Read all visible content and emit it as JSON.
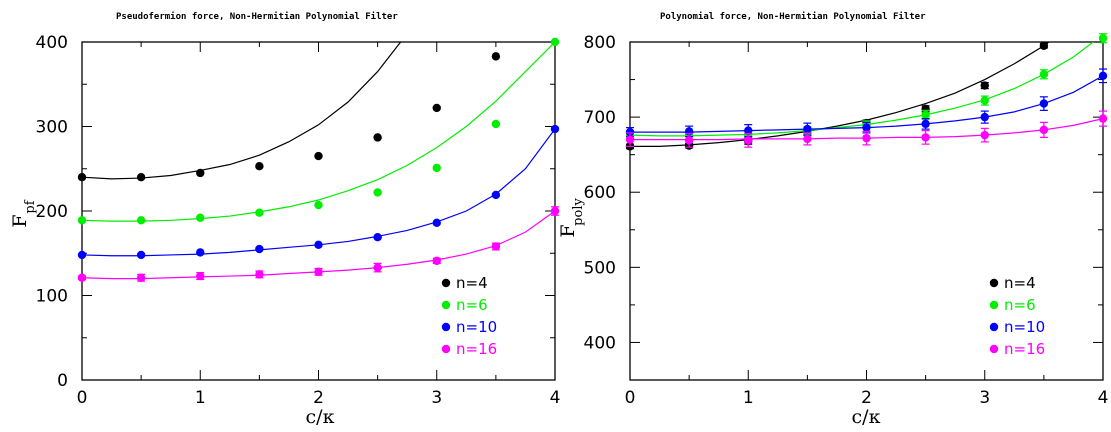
{
  "charts": [
    {
      "title": "Pseudofermion force, Non-Hermitian Polynomial Filter",
      "xlabel": "c/κ",
      "ylabel_main": "F",
      "ylabel_sub": "pf",
      "xticks": [
        "0",
        "1",
        "2",
        "3",
        "4"
      ],
      "yticks": [
        "0",
        "100",
        "200",
        "300",
        "400"
      ]
    },
    {
      "title": "Polynomial force, Non-Hermitian Polynomial Filter",
      "xlabel": "c/κ",
      "ylabel_main": "F",
      "ylabel_sub": "poly",
      "xticks": [
        "0",
        "1",
        "2",
        "3",
        "4"
      ],
      "yticks": [
        "400",
        "500",
        "600",
        "700",
        "800"
      ]
    }
  ],
  "chart_data": [
    {
      "type": "scatter",
      "title": "Pseudofermion force, Non-Hermitian Polynomial Filter",
      "xlabel": "c/κ",
      "ylabel": "F_pf",
      "xlim": [
        0,
        4
      ],
      "ylim": [
        0,
        400
      ],
      "xticks": [
        0,
        1,
        2,
        3,
        4
      ],
      "yticks": [
        0,
        100,
        200,
        300,
        400
      ],
      "grid": false,
      "legend_position": "bottom-right",
      "x": [
        0,
        0.5,
        1,
        1.5,
        2,
        2.5,
        3,
        3.5,
        4
      ],
      "series": [
        {
          "name": "n=4",
          "color": "#000000",
          "values": [
            240,
            240,
            245,
            253,
            265,
            287,
            322,
            383,
            null
          ],
          "errors": [
            0,
            0,
            0,
            0,
            0,
            0,
            0,
            0,
            0
          ],
          "fit": [
            240,
            238,
            239,
            242,
            248,
            255,
            266,
            282,
            302,
            329,
            365,
            410
          ]
        },
        {
          "name": "n=6",
          "color": "#00ee00",
          "values": [
            189,
            189,
            192,
            198,
            207,
            222,
            251,
            303,
            400
          ],
          "errors": [
            0,
            0,
            0,
            0,
            0,
            0,
            0,
            0,
            0
          ],
          "fit": [
            189,
            188,
            188,
            189,
            191,
            194,
            199,
            205,
            213,
            224,
            237,
            254,
            275,
            300,
            330,
            365,
            400
          ]
        },
        {
          "name": "n=10",
          "color": "#0000ff",
          "values": [
            148,
            148,
            151,
            155,
            160,
            169,
            186,
            219,
            297
          ],
          "errors": [
            0,
            0,
            0,
            0,
            0,
            0,
            0,
            0,
            0
          ],
          "fit": [
            148,
            147,
            147,
            148,
            149,
            151,
            154,
            157,
            160,
            164,
            170,
            177,
            187,
            200,
            220,
            250,
            297
          ]
        },
        {
          "name": "n=16",
          "color": "#ff00ff",
          "values": [
            121,
            121,
            123,
            125,
            128,
            133,
            141,
            158,
            200
          ],
          "errors": [
            2,
            4,
            4,
            4,
            4,
            5,
            3,
            4,
            5
          ],
          "fit": [
            121,
            120,
            120,
            121,
            122,
            123,
            124,
            126,
            128,
            130,
            133,
            137,
            142,
            149,
            159,
            175,
            200
          ]
        }
      ]
    },
    {
      "type": "scatter",
      "title": "Polynomial force, Non-Hermitian Polynomial Filter",
      "xlabel": "c/κ",
      "ylabel": "F_poly",
      "xlim": [
        0,
        4
      ],
      "ylim": [
        350,
        800
      ],
      "xticks": [
        0,
        1,
        2,
        3,
        4
      ],
      "yticks": [
        400,
        500,
        600,
        700,
        800
      ],
      "grid": false,
      "legend_position": "bottom-right",
      "x": [
        0,
        0.5,
        1,
        1.5,
        2,
        2.5,
        3,
        3.5,
        4
      ],
      "series": [
        {
          "name": "n=4",
          "color": "#000000",
          "values": [
            661,
            662,
            668,
            680,
            692,
            711,
            742,
            795,
            null
          ],
          "errors": [
            3,
            3,
            4,
            4,
            4,
            4,
            4,
            3,
            0
          ],
          "fit": [
            661,
            661,
            663,
            666,
            670,
            675,
            681,
            688,
            696,
            706,
            718,
            732,
            750,
            771,
            795,
            825
          ]
        },
        {
          "name": "n=6",
          "color": "#00ee00",
          "values": [
            676,
            676,
            676,
            682,
            690,
            703,
            722,
            757,
            805
          ],
          "errors": [
            5,
            5,
            5,
            5,
            5,
            6,
            6,
            6,
            6
          ],
          "fit": [
            676,
            675,
            675,
            676,
            677,
            679,
            682,
            686,
            690,
            696,
            703,
            712,
            723,
            738,
            757,
            780,
            810
          ]
        },
        {
          "name": "n=10",
          "color": "#0000ff",
          "values": [
            680,
            681,
            682,
            684,
            686,
            691,
            700,
            718,
            755
          ],
          "errors": [
            6,
            7,
            8,
            8,
            7,
            7,
            8,
            9,
            9
          ],
          "fit": [
            680,
            680,
            680,
            681,
            682,
            683,
            684,
            685,
            686,
            688,
            691,
            695,
            700,
            707,
            718,
            733,
            755
          ]
        },
        {
          "name": "n=16",
          "color": "#ff00ff",
          "values": [
            670,
            669,
            669,
            671,
            672,
            673,
            676,
            683,
            698
          ],
          "errors": [
            9,
            9,
            9,
            8,
            9,
            9,
            9,
            10,
            10
          ],
          "fit": [
            670,
            670,
            670,
            670,
            671,
            671,
            671,
            672,
            672,
            673,
            673,
            674,
            676,
            679,
            683,
            689,
            698
          ]
        }
      ]
    }
  ]
}
